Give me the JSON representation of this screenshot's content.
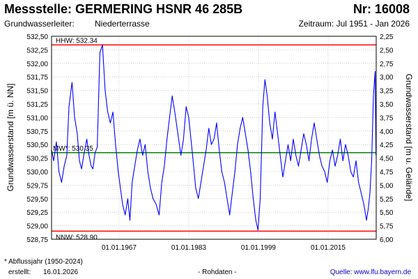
{
  "header": {
    "title": "Messstelle: GERMERING HSNR 46 285B",
    "number": "Nr: 16008",
    "aquifer_label": "Grundwasserleiter:",
    "aquifer_value": "Niederterrasse",
    "period": "Zeitraum: Jul 1951 - Jan 2026"
  },
  "footer": {
    "footnote": "* Abflussjahr (1950-2024)",
    "created_label": "erstellt:",
    "created_value": "16.01.2026",
    "rawdata": "- Rohdaten -",
    "source": "Quelle: www.lfu.bayern.de"
  },
  "colors": {
    "series": "#0000ff",
    "hhw": "#ff0000",
    "nnw": "#ff0000",
    "mw": "#008000",
    "grid": "#aaaaaa"
  },
  "chart_data": {
    "type": "line",
    "ylabel": "Grundwasserstand [m ü. NN]",
    "y2label": "Grundwasserstand [m u. Gelände]",
    "ylim": [
      528.75,
      532.5
    ],
    "y_ticks": [
      "532,50",
      "532,25",
      "532,00",
      "531,75",
      "531,50",
      "531,25",
      "531,00",
      "530,75",
      "530,50",
      "530,25",
      "530,00",
      "529,75",
      "529,50",
      "529,25",
      "529,00",
      "528,75"
    ],
    "y2_ticks": [
      "2,25",
      "2,50",
      "2,75",
      "3,00",
      "3,25",
      "3,50",
      "3,75",
      "4,00",
      "4,25",
      "4,50",
      "4,75",
      "5,00",
      "5,25",
      "5,50",
      "5,75",
      "6,00"
    ],
    "x_ticks": [
      "01.01.1967",
      "01.01.1983",
      "01.01.1999",
      "01.01.2015"
    ],
    "xlim": [
      "1951-07",
      "2026-01"
    ],
    "grid": true,
    "reference_lines": [
      {
        "label": "HHW: 532.34",
        "value": 532.34
      },
      {
        "label": "MW*: 530.35",
        "value": 530.35
      },
      {
        "label": "NNW: 528.90",
        "value": 528.9
      }
    ],
    "series": [
      {
        "x": [
          1951.5,
          1952.0,
          1952.6,
          1953.2,
          1953.8,
          1954.4,
          1955.0,
          1955.5,
          1956.2,
          1956.8,
          1957.4,
          1957.9,
          1958.4,
          1959.0,
          1959.6,
          1960.1,
          1960.6,
          1961.0,
          1961.5,
          1962.0,
          1962.6,
          1963.2,
          1963.8,
          1964.4,
          1965.0,
          1965.6,
          1966.2,
          1966.8,
          1967.3,
          1967.8,
          1968.4,
          1969.0,
          1969.5,
          1970.0,
          1970.6,
          1971.2,
          1971.8,
          1972.4,
          1973.0,
          1973.6,
          1974.2,
          1974.8,
          1975.5,
          1976.2,
          1976.8,
          1977.4,
          1978.0,
          1978.6,
          1979.2,
          1979.8,
          1980.5,
          1981.2,
          1981.8,
          1982.4,
          1983.0,
          1983.5,
          1984.0,
          1984.6,
          1985.2,
          1985.8,
          1986.4,
          1987.0,
          1987.6,
          1988.2,
          1988.8,
          1989.4,
          1990.0,
          1990.6,
          1991.2,
          1991.8,
          1992.4,
          1993.0,
          1993.6,
          1994.2,
          1994.8,
          1995.4,
          1996.0,
          1996.6,
          1997.2,
          1997.8,
          1998.4,
          1998.9,
          1999.4,
          2000.0,
          2000.5,
          2001.0,
          2001.6,
          2002.2,
          2002.8,
          2003.4,
          2004.0,
          2004.6,
          2005.2,
          2005.8,
          2006.4,
          2007.0,
          2007.6,
          2008.2,
          2008.8,
          2009.4,
          2010.0,
          2010.6,
          2011.2,
          2011.8,
          2012.4,
          2013.0,
          2013.6,
          2014.2,
          2014.8,
          2015.4,
          2016.0,
          2016.6,
          2017.2,
          2017.8,
          2018.4,
          2019.0,
          2019.6,
          2020.2,
          2020.8,
          2021.4,
          2022.0,
          2022.6,
          2023.2,
          2023.8,
          2024.2,
          2024.6,
          2025.0,
          2025.4,
          2025.8,
          2026.0
        ],
        "values": [
          530.4,
          530.2,
          530.55,
          530.0,
          529.8,
          530.1,
          530.3,
          531.2,
          531.65,
          531.0,
          530.7,
          530.2,
          530.05,
          530.35,
          530.6,
          530.3,
          530.1,
          530.05,
          530.35,
          530.45,
          532.2,
          532.34,
          531.5,
          531.1,
          530.9,
          531.1,
          530.5,
          530.0,
          529.7,
          529.4,
          529.2,
          529.5,
          529.1,
          529.8,
          530.1,
          530.4,
          530.6,
          530.3,
          530.5,
          530.0,
          529.7,
          529.5,
          529.4,
          529.2,
          529.8,
          530.1,
          530.6,
          531.0,
          531.4,
          531.1,
          530.7,
          530.3,
          530.6,
          531.2,
          531.0,
          530.6,
          530.2,
          529.7,
          529.5,
          529.8,
          530.1,
          530.4,
          530.8,
          530.5,
          530.6,
          530.9,
          530.4,
          530.0,
          529.8,
          529.5,
          529.2,
          529.6,
          530.0,
          530.5,
          530.8,
          531.0,
          530.7,
          530.4,
          530.0,
          529.5,
          529.1,
          528.92,
          529.5,
          531.2,
          531.7,
          531.4,
          530.9,
          530.6,
          531.1,
          530.7,
          530.3,
          529.9,
          530.2,
          530.5,
          530.2,
          530.6,
          530.3,
          530.1,
          530.4,
          530.7,
          530.5,
          530.2,
          530.6,
          530.9,
          530.6,
          530.3,
          530.1,
          530.0,
          529.8,
          530.2,
          530.4,
          530.1,
          530.3,
          530.6,
          530.2,
          530.5,
          530.3,
          530.0,
          529.9,
          530.2,
          529.8,
          529.6,
          529.4,
          529.1,
          529.3,
          529.6,
          530.2,
          531.4,
          531.85,
          530.3
        ]
      }
    ]
  }
}
